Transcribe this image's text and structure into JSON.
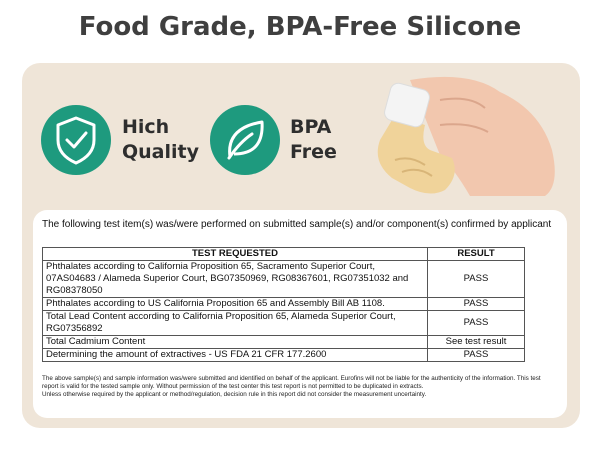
{
  "header": {
    "title": "Food Grade, BPA-Free Silicone"
  },
  "badges": [
    {
      "lines": [
        "Hich",
        "Quality"
      ]
    },
    {
      "lines": [
        "BPA",
        "Free"
      ]
    }
  ],
  "report": {
    "intro": "The following test item(s) was/were performed on submitted sample(s) and/or component(s) confirmed by applicant",
    "table": {
      "columns": [
        "TEST REQUESTED",
        "RESULT"
      ],
      "rows": [
        [
          "Phthalates according to California Proposition 65, Sacramento Superior Court, 07AS04683 / Alameda Superior Court, BG07350969, RG08367601, RG07351032 and RG08378050",
          "PASS"
        ],
        [
          "Phthalates according to US California Proposition 65 and Assembly Bill AB 1108.",
          "PASS"
        ],
        [
          "Total Lead Content according to California Proposition 65, Alameda Superior Court, RG07356892",
          "PASS"
        ],
        [
          "Total Cadmium Content",
          "See test result"
        ],
        [
          "Determining the amount of extractives - US FDA 21 CFR 177.2600",
          "PASS"
        ]
      ]
    },
    "notes": [
      "The above sample(s) and sample information was/were submitted and identified on behalf of the applicant. Eurofins will not be liable for the authenticity of the information. This test report is valid for the tested sample only. Without permission of the test center this test report is not permitted to be duplicated in extracts.",
      "Unless otherwise required by the applicant or method/regulation, decision rule in this report did not consider the measurement uncertainty."
    ]
  }
}
